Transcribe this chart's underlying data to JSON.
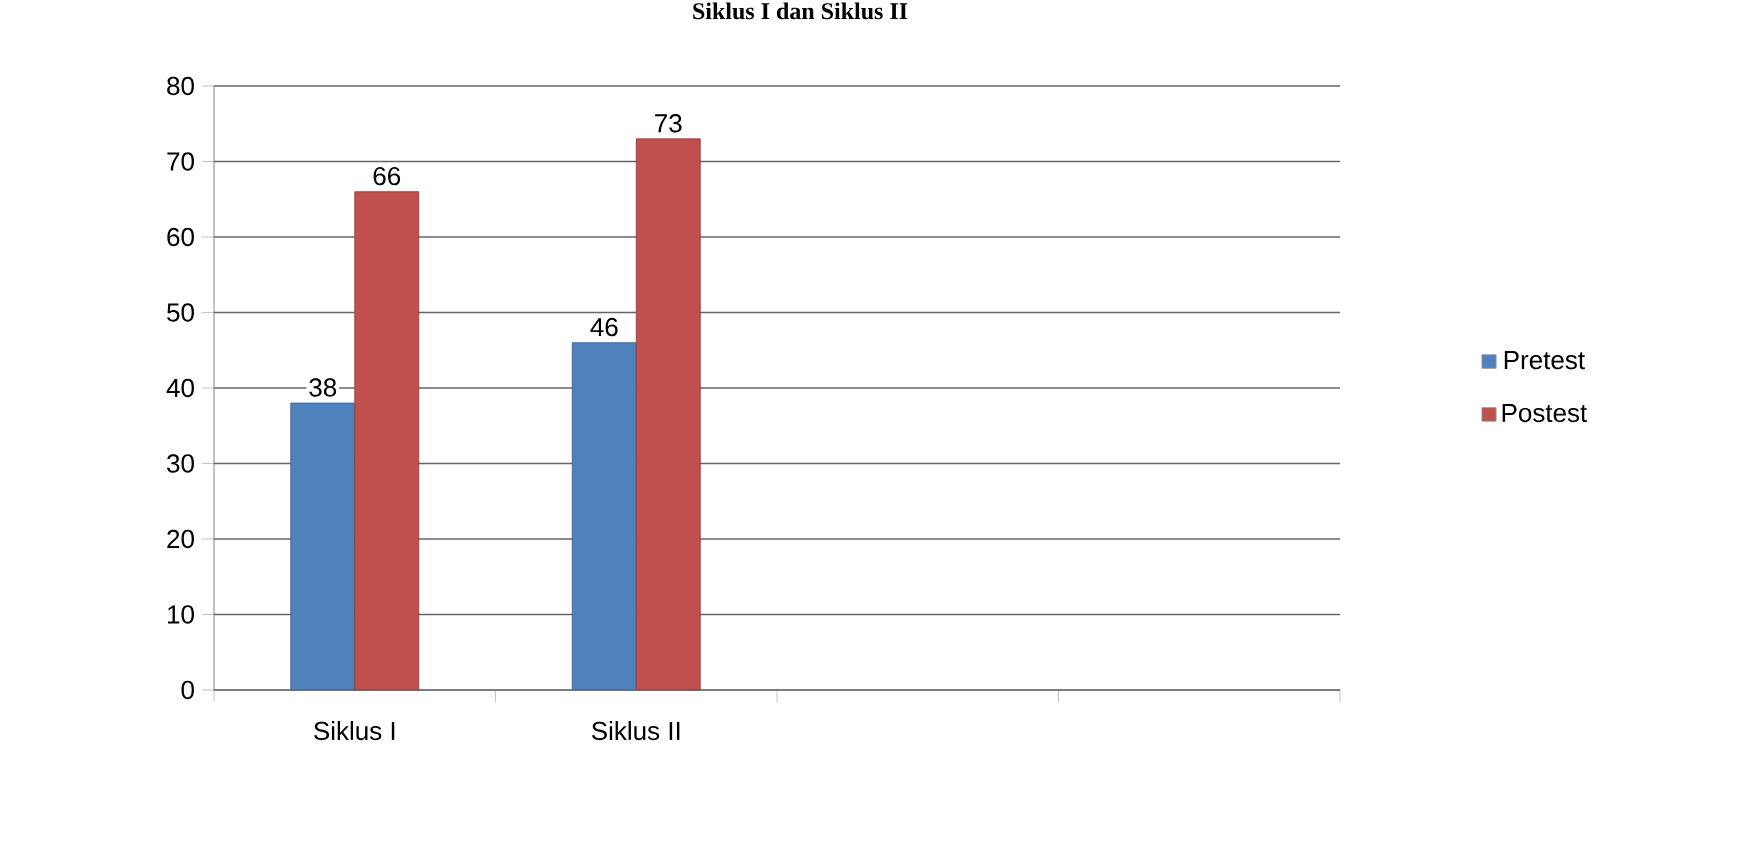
{
  "chart_data": {
    "type": "bar",
    "title": "Siklus I dan Siklus II",
    "categories": [
      "Siklus I",
      "Siklus II",
      null,
      null
    ],
    "series": [
      {
        "name": "Pretest",
        "color": "#4f81bd",
        "values": [
          38,
          46,
          null,
          null
        ]
      },
      {
        "name": "Postest",
        "color": "#c0504d",
        "values": [
          66,
          73,
          null,
          null
        ]
      }
    ],
    "ylim": [
      0,
      80
    ],
    "yticks": [
      0,
      10,
      20,
      30,
      40,
      50,
      60,
      70,
      80
    ],
    "grid": "y",
    "legend": "right",
    "data_labels": true
  }
}
